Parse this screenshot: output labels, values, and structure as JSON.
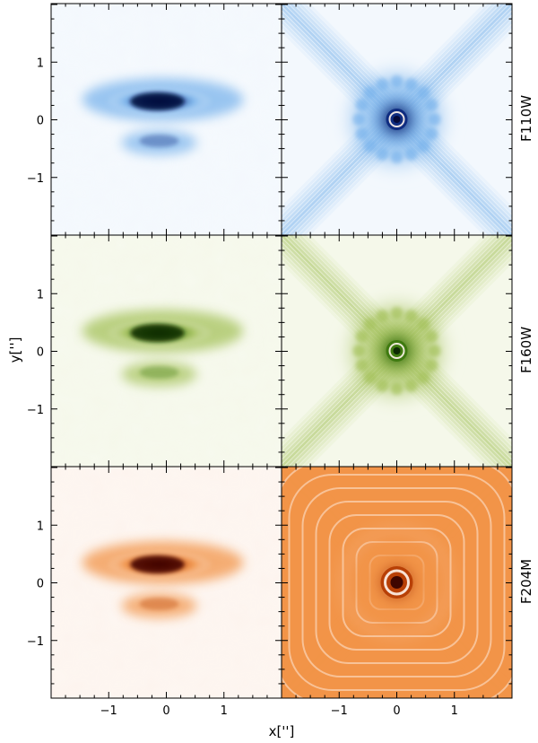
{
  "figure": {
    "xlabel": "x['']",
    "ylabel": "y['']",
    "x_ticks": [
      "−1",
      "0",
      "1"
    ],
    "y_ticks": [
      "1",
      "0",
      "−1"
    ],
    "axis_range": [
      -2,
      2
    ]
  },
  "rows": [
    {
      "filter": "F110W",
      "colormap": "blue",
      "colors": {
        "light": "#f3f8fd",
        "mid": "#7ab4ec",
        "dark": "#0f2c80",
        "core": "#050a3a"
      }
    },
    {
      "filter": "F160W",
      "colormap": "green",
      "colors": {
        "light": "#f5f8ea",
        "mid": "#a5c25c",
        "dark": "#3f7a10",
        "core": "#0d2a04"
      }
    },
    {
      "filter": "F204M",
      "colormap": "orange",
      "colors": {
        "light": "#fdf4ee",
        "mid": "#f29448",
        "dark": "#b84006",
        "core": "#3e0600"
      }
    }
  ],
  "columns": [
    {
      "panel": "disk"
    },
    {
      "panel": "psf"
    }
  ]
}
